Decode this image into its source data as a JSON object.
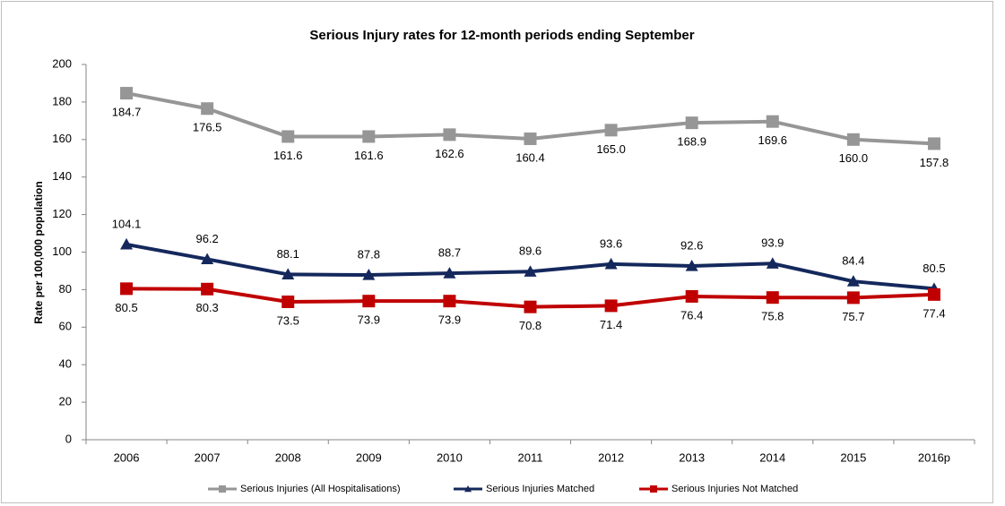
{
  "chart_data": {
    "type": "line",
    "title": "Serious Injury rates for 12-month periods ending September",
    "y_label": "Rate per 100,000 population",
    "categories": [
      "2006",
      "2007",
      "2008",
      "2009",
      "2010",
      "2011",
      "2012",
      "2013",
      "2014",
      "2015",
      "2016p"
    ],
    "series": [
      {
        "name": "Serious Injuries (All Hospitalisations)",
        "color": "#969696",
        "marker": "square",
        "label_position": "below",
        "values": [
          184.7,
          176.5,
          161.6,
          161.6,
          162.6,
          160.4,
          165.0,
          168.9,
          169.6,
          160.0,
          157.8
        ],
        "value_labels": [
          "184.7",
          "176.5",
          "161.6",
          "161.6",
          "162.6",
          "160.4",
          "165.0",
          "168.9",
          "169.6",
          "160.0",
          "157.8"
        ]
      },
      {
        "name": "Serious Injuries Matched",
        "color": "#14285c",
        "marker": "triangle",
        "label_position": "above",
        "values": [
          104.1,
          96.2,
          88.1,
          87.8,
          88.7,
          89.6,
          93.6,
          92.6,
          93.9,
          84.4,
          80.5
        ],
        "value_labels": [
          "104.1",
          "96.2",
          "88.1",
          "87.8",
          "88.7",
          "89.6",
          "93.6",
          "92.6",
          "93.9",
          "84.4",
          "80.5"
        ]
      },
      {
        "name": "Serious Injuries Not Matched",
        "color": "#c00000",
        "marker": "square",
        "label_position": "below",
        "values": [
          80.5,
          80.3,
          73.5,
          73.9,
          73.9,
          70.8,
          71.4,
          76.4,
          75.8,
          75.7,
          77.4
        ],
        "value_labels": [
          "80.5",
          "80.3",
          "73.5",
          "73.9",
          "73.9",
          "70.8",
          "71.4",
          "76.4",
          "75.8",
          "75.7",
          "77.4"
        ]
      }
    ],
    "ylim": [
      0,
      200
    ],
    "yticks": [
      0,
      20,
      40,
      60,
      80,
      100,
      120,
      140,
      160,
      180,
      200
    ],
    "grid": false,
    "legend": "bottom"
  }
}
